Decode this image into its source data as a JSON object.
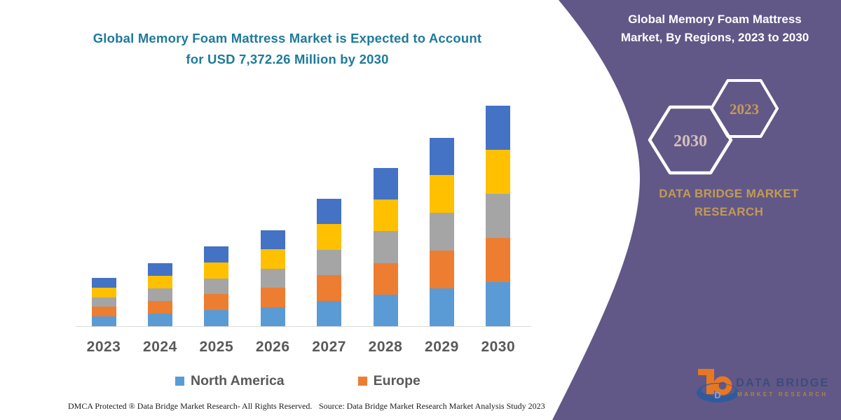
{
  "colors": {
    "background": "#ffffff",
    "panel_purple": "#615887",
    "title_teal": "#1E7A9C",
    "axis_text_gray": "#595959",
    "axis_line": "#D9D9D9",
    "gold": "#C49A52",
    "hex_2030_text": "#D5BEBE",
    "hex_2023_text": "#C69B58",
    "hexagon_stroke": "#ffffff"
  },
  "chart_panel": {
    "title": "Global Memory Foam Mattress Market is Expected to Account\nfor USD 7,372.26 Million by 2030"
  },
  "chart_data": {
    "type": "bar",
    "stacked": true,
    "title": "Global Memory Foam Mattress Market is Expected to Account for USD 7,372.26 Million by 2030",
    "unit": "USD Million",
    "categories": [
      "2023",
      "2024",
      "2025",
      "2026",
      "2027",
      "2028",
      "2029",
      "2030"
    ],
    "series": [
      {
        "key": "north-america",
        "name": "North America",
        "color": "#5B9BD5",
        "in_legend": true,
        "values": [
          323,
          421,
          534,
          641,
          852,
          1058,
          1262,
          1474.45
        ]
      },
      {
        "key": "europe",
        "name": "Europe",
        "color": "#ED7D31",
        "in_legend": true,
        "values": [
          323,
          421,
          534,
          641,
          852,
          1058,
          1262,
          1474.45
        ]
      },
      {
        "key": "unlabeled-gray",
        "name": "(unlabeled gray segment)",
        "color": "#A5A5A5",
        "in_legend": false,
        "values": [
          323,
          421,
          534,
          641,
          852,
          1058,
          1262,
          1474.45
        ]
      },
      {
        "key": "unlabeled-yellow",
        "name": "(unlabeled yellow segment)",
        "color": "#FFC000",
        "in_legend": false,
        "values": [
          323,
          421,
          534,
          641,
          852,
          1058,
          1262,
          1474.45
        ]
      },
      {
        "key": "unlabeled-dark-blue",
        "name": "(unlabeled dark blue segment)",
        "color": "#4472C4",
        "in_legend": false,
        "values": [
          323,
          421,
          534,
          641,
          852,
          1058,
          1262,
          1474.45
        ]
      }
    ],
    "totals": [
      1615,
      2105,
      2670,
      3205,
      4260,
      5290,
      6310,
      7372.26
    ],
    "values_estimated_from_pixels": true,
    "y_axis_visible": false,
    "gridlines": false,
    "legend_position": "bottom"
  },
  "footer": {
    "dmca": "DMCA Protected ® Data Bridge Market Research-  All Rights Reserved.",
    "source": "Source: Data Bridge Market Research  Market Analysis Study 2023"
  },
  "side_panel": {
    "title": "Global Memory Foam Mattress\nMarket, By Regions, 2023 to 2030",
    "hexagons": [
      {
        "label": "2030"
      },
      {
        "label": "2023"
      }
    ],
    "brand_text": "DATA BRIDGE MARKET\nRESEARCH",
    "logo": {
      "monogram": "D",
      "name": "DATA BRIDGE",
      "subtitle": "MARKET RESEARCH"
    }
  }
}
